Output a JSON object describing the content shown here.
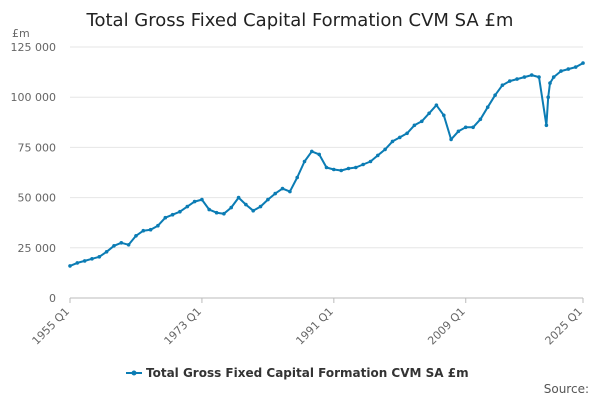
{
  "chart_data": {
    "type": "line",
    "title": "Total Gross Fixed Capital Formation CVM SA £m",
    "unit_label": "£m",
    "source_label": "Source:",
    "ylim": [
      0,
      125000
    ],
    "y_ticks": [
      0,
      25000,
      50000,
      75000,
      100000,
      125000
    ],
    "y_tick_labels": [
      "0",
      "25 000",
      "50 000",
      "75 000",
      "100 000",
      "125 000"
    ],
    "x_ticks": [
      "1955 Q1",
      "1973 Q1",
      "1991 Q1",
      "2009 Q1",
      "2025 Q1"
    ],
    "grid": true,
    "legend_position": "bottom",
    "color": "#0b7cb4",
    "series": [
      {
        "name": "Total Gross Fixed Capital Formation CVM SA £m",
        "x": [
          "1955 Q1",
          "1956 Q1",
          "1957 Q1",
          "1958 Q1",
          "1959 Q1",
          "1960 Q1",
          "1961 Q1",
          "1962 Q1",
          "1963 Q1",
          "1964 Q1",
          "1965 Q1",
          "1966 Q1",
          "1967 Q1",
          "1968 Q1",
          "1969 Q1",
          "1970 Q1",
          "1971 Q1",
          "1972 Q1",
          "1973 Q1",
          "1974 Q1",
          "1975 Q1",
          "1976 Q1",
          "1977 Q1",
          "1978 Q1",
          "1979 Q1",
          "1980 Q1",
          "1981 Q1",
          "1982 Q1",
          "1983 Q1",
          "1984 Q1",
          "1985 Q1",
          "1986 Q1",
          "1987 Q1",
          "1988 Q1",
          "1989 Q1",
          "1990 Q1",
          "1991 Q1",
          "1992 Q1",
          "1993 Q1",
          "1994 Q1",
          "1995 Q1",
          "1996 Q1",
          "1997 Q1",
          "1998 Q1",
          "1999 Q1",
          "2000 Q1",
          "2001 Q1",
          "2002 Q1",
          "2003 Q1",
          "2004 Q1",
          "2005 Q1",
          "2006 Q1",
          "2007 Q1",
          "2008 Q1",
          "2009 Q1",
          "2010 Q1",
          "2011 Q1",
          "2012 Q1",
          "2013 Q1",
          "2014 Q1",
          "2015 Q1",
          "2016 Q1",
          "2017 Q1",
          "2018 Q1",
          "2019 Q1",
          "2020 Q1",
          "2020 Q2",
          "2020 Q3",
          "2021 Q1",
          "2022 Q1",
          "2023 Q1",
          "2024 Q1",
          "2025 Q1"
        ],
        "values": [
          16000,
          17500,
          18500,
          19500,
          20500,
          23000,
          26000,
          27500,
          26500,
          31000,
          33500,
          34000,
          36000,
          40000,
          41500,
          43000,
          45500,
          48000,
          49000,
          44000,
          42500,
          42000,
          45000,
          50000,
          46500,
          43500,
          45500,
          49000,
          52000,
          54500,
          53000,
          60000,
          68000,
          73000,
          71500,
          65000,
          64000,
          63500,
          64500,
          65000,
          66500,
          68000,
          71000,
          74000,
          78000,
          80000,
          82000,
          86000,
          88000,
          92000,
          96000,
          91000,
          79000,
          83000,
          85000,
          85000,
          89000,
          95000,
          101000,
          106000,
          108000,
          109000,
          110000,
          111000,
          110000,
          86000,
          100000,
          107000,
          110000,
          113000,
          114000,
          115000,
          117000
        ]
      }
    ]
  }
}
